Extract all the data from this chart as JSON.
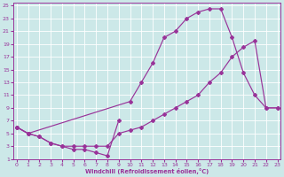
{
  "bg_color": "#cce8e8",
  "line_color": "#993399",
  "xlabel": "Windchill (Refroidissement éolien,°C)",
  "xlim": [
    -0.3,
    23.3
  ],
  "ylim": [
    1,
    25.5
  ],
  "xticks": [
    0,
    1,
    2,
    3,
    4,
    5,
    6,
    7,
    8,
    9,
    10,
    11,
    12,
    13,
    14,
    15,
    16,
    17,
    18,
    19,
    20,
    21,
    22,
    23
  ],
  "yticks": [
    1,
    3,
    5,
    7,
    9,
    11,
    13,
    15,
    17,
    19,
    21,
    23,
    25
  ],
  "curves": [
    {
      "x": [
        0,
        1,
        10,
        11,
        12,
        13,
        14,
        15,
        16,
        17,
        18,
        19,
        20,
        21,
        22,
        23
      ],
      "y": [
        6,
        5,
        10,
        13,
        16,
        20,
        21,
        23,
        24,
        24.5,
        24.5,
        20,
        14.5,
        11,
        9,
        9
      ]
    },
    {
      "x": [
        0,
        1,
        2,
        3,
        4,
        5,
        6,
        7,
        8,
        9
      ],
      "y": [
        6,
        5,
        4.5,
        3.5,
        3,
        2.5,
        2.5,
        2,
        1.5,
        7
      ]
    },
    {
      "x": [
        0,
        1,
        2,
        3,
        4,
        5,
        6,
        7,
        8,
        9,
        10,
        11,
        12,
        13,
        14,
        15,
        16,
        17,
        18,
        19,
        20,
        21,
        22,
        23
      ],
      "y": [
        6,
        5,
        4.5,
        3.5,
        3,
        3,
        3,
        3,
        3,
        5,
        5.5,
        6,
        7,
        8,
        9,
        10,
        11,
        13,
        14.5,
        17,
        18.5,
        19.5,
        9,
        9
      ]
    }
  ]
}
